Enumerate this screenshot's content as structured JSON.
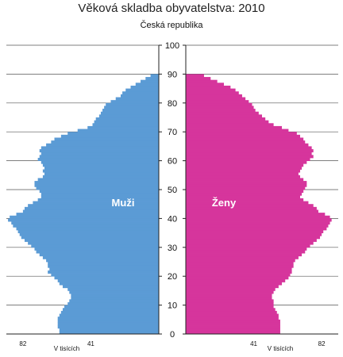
{
  "chart_data": {
    "type": "bar",
    "orientation": "population-pyramid",
    "title": "Věková skladba obyvatelstva: 2010",
    "subtitle": "Česká republika",
    "y_axis": {
      "min": 0,
      "max": 100,
      "ticks": [
        "0",
        "10",
        "20",
        "30",
        "40",
        "50",
        "60",
        "70",
        "80",
        "90",
        "100"
      ]
    },
    "x_axis": {
      "unit_label": "V tisících",
      "max": 92,
      "ticks_left": [
        "82",
        "41"
      ],
      "ticks_right": [
        "41",
        "82"
      ],
      "tick_values": [
        82,
        41
      ]
    },
    "grid": "horizontal",
    "colors": {
      "male": "#5b9bd5",
      "female": "#d6359c"
    },
    "ages": [
      0,
      1,
      2,
      3,
      4,
      5,
      6,
      7,
      8,
      9,
      10,
      11,
      12,
      13,
      14,
      15,
      16,
      17,
      18,
      19,
      20,
      21,
      22,
      23,
      24,
      25,
      26,
      27,
      28,
      29,
      30,
      31,
      32,
      33,
      34,
      35,
      36,
      37,
      38,
      39,
      40,
      41,
      42,
      43,
      44,
      45,
      46,
      47,
      48,
      49,
      50,
      51,
      52,
      53,
      54,
      55,
      56,
      57,
      58,
      59,
      60,
      61,
      62,
      63,
      64,
      65,
      66,
      67,
      68,
      69,
      70,
      71,
      72,
      73,
      74,
      75,
      76,
      77,
      78,
      79,
      80,
      81,
      82,
      83,
      84,
      85,
      86,
      87,
      88,
      89
    ],
    "series": [
      {
        "name": "Muži",
        "side": "left",
        "values": [
          60,
          60,
          61,
          61,
          61,
          61,
          60,
          59,
          58,
          57,
          55,
          54,
          53,
          53,
          54,
          55,
          58,
          60,
          61,
          63,
          65,
          67,
          66,
          67,
          67,
          68,
          70,
          72,
          74,
          75,
          77,
          79,
          81,
          83,
          84,
          85,
          86,
          88,
          89,
          91,
          90,
          86,
          82,
          81,
          79,
          76,
          73,
          71,
          71,
          72,
          74,
          75,
          75,
          73,
          70,
          69,
          70,
          69,
          70,
          71,
          73,
          72,
          71,
          72,
          71,
          68,
          65,
          63,
          59,
          55,
          49,
          43,
          40,
          39,
          38,
          36,
          35,
          34,
          33,
          32,
          29,
          26,
          23,
          22,
          20,
          17,
          14,
          11,
          8,
          5
        ]
      },
      {
        "name": "Ženy",
        "side": "right",
        "values": [
          57,
          57,
          57,
          57,
          57,
          56,
          56,
          55,
          54,
          53,
          53,
          53,
          52,
          52,
          53,
          54,
          56,
          58,
          60,
          62,
          63,
          64,
          64,
          65,
          65,
          66,
          68,
          70,
          72,
          73,
          75,
          77,
          79,
          81,
          82,
          83,
          85,
          86,
          87,
          88,
          87,
          84,
          80,
          79,
          77,
          74,
          71,
          69,
          70,
          71,
          72,
          73,
          73,
          71,
          69,
          68,
          69,
          70,
          71,
          73,
          75,
          77,
          76,
          77,
          76,
          74,
          72,
          71,
          69,
          67,
          62,
          58,
          53,
          50,
          48,
          46,
          44,
          42,
          41,
          40,
          38,
          36,
          34,
          32,
          30,
          27,
          23,
          19,
          15,
          11
        ]
      }
    ]
  }
}
